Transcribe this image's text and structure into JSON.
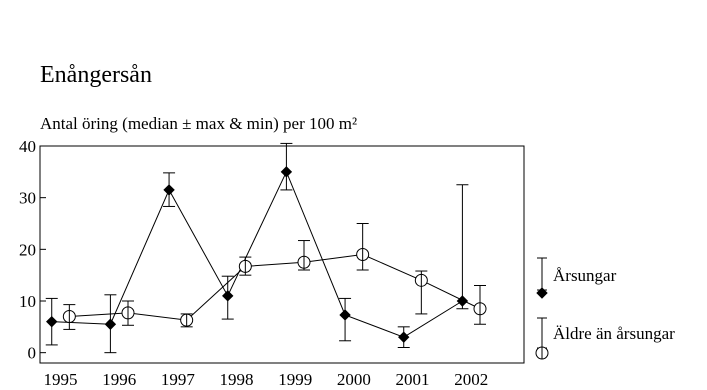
{
  "chart_data": {
    "type": "line",
    "title": "Enångersån",
    "subtitle": "Antal öring (median ± max & min) per 100 m²",
    "xlabel": "",
    "ylabel": "",
    "categories": [
      "1995",
      "1996",
      "1997",
      "1998",
      "1999",
      "2000",
      "2001",
      "2002"
    ],
    "ylim": [
      -2,
      40
    ],
    "yticks": [
      0,
      10,
      20,
      30,
      40
    ],
    "grid": false,
    "legend_position": "right",
    "series": [
      {
        "name": "Årsungar",
        "marker": "filled-diamond",
        "x": [
          1995,
          1996,
          1997,
          1998,
          1999,
          2000,
          2001,
          2002
        ],
        "median": [
          6,
          5.5,
          31.5,
          11,
          35,
          7.3,
          3,
          10
        ],
        "max": [
          10.5,
          11.2,
          34.8,
          14.8,
          40.5,
          10.5,
          5,
          32.5
        ],
        "min": [
          1.5,
          0,
          28.3,
          6.5,
          31.5,
          2.3,
          1,
          8.5
        ]
      },
      {
        "name": "Äldre än årsungar",
        "marker": "open-circle",
        "x": [
          1995.3,
          1996.3,
          1997.3,
          1998.3,
          1999.3,
          2000.3,
          2001.3,
          2002.3
        ],
        "median": [
          7,
          7.7,
          6.3,
          16.7,
          17.5,
          19,
          14,
          8.5
        ],
        "max": [
          9.3,
          10,
          7.5,
          18.5,
          21.7,
          25,
          15.8,
          13
        ],
        "min": [
          4.5,
          5.3,
          5,
          15,
          16,
          16,
          7.5,
          5.5
        ]
      }
    ]
  }
}
